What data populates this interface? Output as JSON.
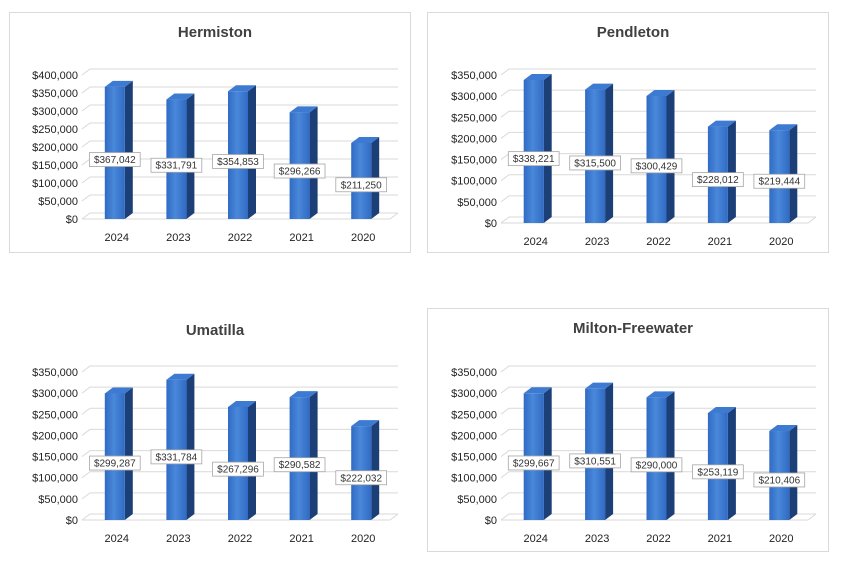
{
  "chart_data": [
    {
      "type": "bar",
      "title": "Hermiston",
      "categories": [
        "2024",
        "2023",
        "2022",
        "2021",
        "2020"
      ],
      "values": [
        367042,
        331791,
        354853,
        296266,
        211250
      ],
      "value_labels": [
        "$367,042",
        "$331,791",
        "$354,853",
        "$296,266",
        "$211,250"
      ],
      "yticks": [
        "$0",
        "$50,000",
        "$100,000",
        "$150,000",
        "$200,000",
        "$250,000",
        "$300,000",
        "$350,000",
        "$400,000"
      ],
      "ylim": [
        0,
        400000
      ],
      "xlabel": "",
      "ylabel": "",
      "legend": "none",
      "grid": true
    },
    {
      "type": "bar",
      "title": "Pendleton",
      "categories": [
        "2024",
        "2023",
        "2022",
        "2021",
        "2020"
      ],
      "values": [
        338221,
        315500,
        300429,
        228012,
        219444
      ],
      "value_labels": [
        "$338,221",
        "$315,500",
        "$300,429",
        "$228,012",
        "$219,444"
      ],
      "yticks": [
        "$0",
        "$50,000",
        "$100,000",
        "$150,000",
        "$200,000",
        "$250,000",
        "$300,000",
        "$350,000"
      ],
      "ylim": [
        0,
        350000
      ],
      "xlabel": "",
      "ylabel": "",
      "legend": "none",
      "grid": true
    },
    {
      "type": "bar",
      "title": "Umatilla",
      "categories": [
        "2024",
        "2023",
        "2022",
        "2021",
        "2020"
      ],
      "values": [
        299287,
        331784,
        267296,
        290582,
        222032
      ],
      "value_labels": [
        "$299,287",
        "$331,784",
        "$267,296",
        "$290,582",
        "$222,032"
      ],
      "yticks": [
        "$0",
        "$50,000",
        "$100,000",
        "$150,000",
        "$200,000",
        "$250,000",
        "$300,000",
        "$350,000"
      ],
      "ylim": [
        0,
        350000
      ],
      "xlabel": "",
      "ylabel": "",
      "legend": "none",
      "grid": true
    },
    {
      "type": "bar",
      "title": "Milton-Freewater",
      "categories": [
        "2024",
        "2023",
        "2022",
        "2021",
        "2020"
      ],
      "values": [
        299667,
        310551,
        290000,
        253119,
        210406
      ],
      "value_labels": [
        "$299,667",
        "$310,551",
        "$290,000",
        "$253,119",
        "$210,406"
      ],
      "yticks": [
        "$0",
        "$50,000",
        "$100,000",
        "$150,000",
        "$200,000",
        "$250,000",
        "$300,000",
        "$350,000"
      ],
      "ylim": [
        0,
        350000
      ],
      "xlabel": "",
      "ylabel": "",
      "legend": "none",
      "grid": true
    }
  ],
  "colors": {
    "bar_front": "#2f6bc4",
    "bar_front_light": "#4a88da",
    "bar_side": "#1c3f78",
    "bar_top": "#3d7ad2",
    "gridline": "#d9d9d9",
    "panel_border": "#d9d9d9",
    "label_border": "#a6a6a6"
  }
}
